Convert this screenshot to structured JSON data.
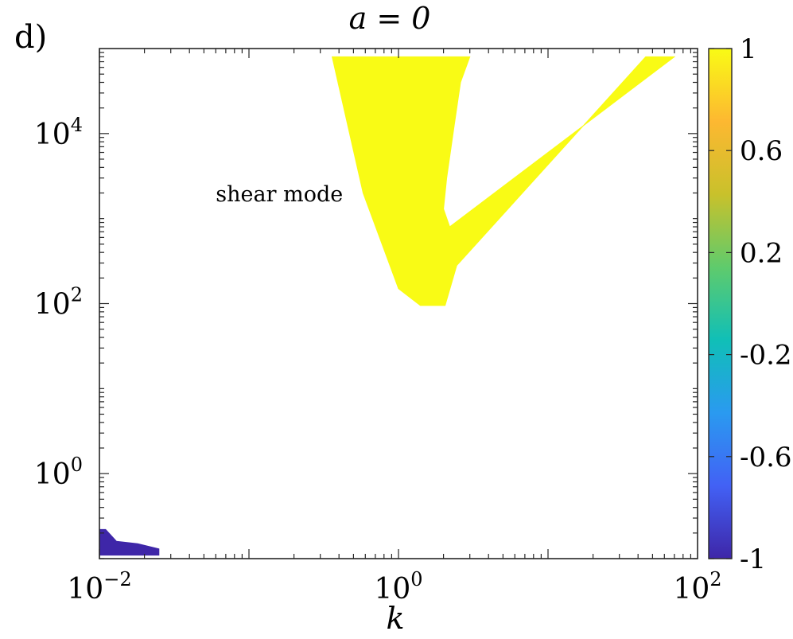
{
  "panel_label": "d)",
  "chart_data": {
    "type": "heatmap",
    "title": "a = 0",
    "xlabel": "k",
    "ylabel": "",
    "xscale": "log",
    "yscale": "log",
    "xlim": [
      0.01,
      100
    ],
    "ylim": [
      0.1,
      100000
    ],
    "x_ticks": [
      {
        "value": 0.01,
        "base": "10",
        "exp": "−2"
      },
      {
        "value": 1,
        "base": "10",
        "exp": "0"
      },
      {
        "value": 100,
        "base": "10",
        "exp": "2"
      }
    ],
    "y_ticks": [
      {
        "value": 1,
        "base": "10",
        "exp": "0"
      },
      {
        "value": 100,
        "base": "10",
        "exp": "2"
      },
      {
        "value": 10000,
        "base": "10",
        "exp": "4"
      }
    ],
    "colorbar": {
      "range": [
        -1,
        1
      ],
      "ticks": [
        "1",
        "0.6",
        "0.2",
        "-0.2",
        "-0.6",
        "-1"
      ],
      "tick_values": [
        1,
        0.6,
        0.2,
        -0.2,
        -0.6,
        -1
      ],
      "colormap": "parula",
      "stops": [
        "#3e26a8",
        "#4261f5",
        "#2a9af0",
        "#10bfb7",
        "#5fcb6c",
        "#c9c12b",
        "#fdb831",
        "#f9fb15"
      ]
    },
    "regions": [
      {
        "value": 1,
        "color": "#f9fb15",
        "polygon": [
          [
            0.36,
            80000
          ],
          [
            3.0,
            80000
          ],
          [
            2.6,
            40000
          ],
          [
            2.35,
            12000
          ],
          [
            2.1,
            3000
          ],
          [
            2.0,
            1300
          ],
          [
            2.2,
            800
          ],
          [
            70,
            80000
          ],
          [
            45,
            80000
          ],
          [
            2.45,
            280
          ],
          [
            2.05,
            95
          ],
          [
            1.4,
            95
          ],
          [
            1.0,
            150
          ],
          [
            0.58,
            2000
          ],
          [
            0.46,
            12000
          ]
        ]
      },
      {
        "value": -1,
        "color": "#3e26a8",
        "polygon": [
          [
            0.01,
            0.22
          ],
          [
            0.011,
            0.22
          ],
          [
            0.013,
            0.16
          ],
          [
            0.018,
            0.15
          ],
          [
            0.025,
            0.13
          ],
          [
            0.025,
            0.11
          ],
          [
            0.01,
            0.11
          ]
        ]
      }
    ],
    "annotations": [
      {
        "text": "shear mode",
        "x": 0.06,
        "y": 1600
      }
    ]
  }
}
